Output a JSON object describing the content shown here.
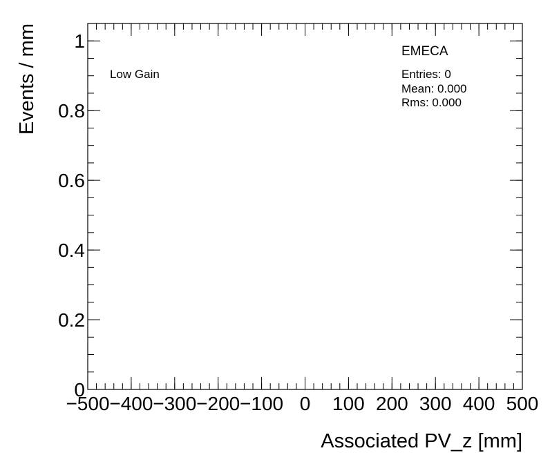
{
  "chart_data": {
    "type": "bar",
    "title": "",
    "xlabel": "Associated PV_z [mm]",
    "ylabel": "Events / mm",
    "xlim": [
      -500,
      500
    ],
    "ylim": [
      0,
      1.05
    ],
    "x_ticks": [
      -500,
      -400,
      -300,
      -200,
      -100,
      0,
      100,
      200,
      300,
      400,
      500
    ],
    "x_tick_labels": [
      "−500",
      "−400",
      "−300",
      "−200",
      "−100",
      "0",
      "100",
      "200",
      "300",
      "400",
      "500"
    ],
    "y_ticks": [
      0,
      0.2,
      0.4,
      0.6,
      0.8,
      1
    ],
    "y_tick_labels": [
      "0",
      "0.2",
      "0.4",
      "0.6",
      "0.8",
      "1"
    ],
    "x_minor_step": 20,
    "y_minor_step": 0.05,
    "grid": false,
    "legend": "none",
    "series": [],
    "annotations": {
      "gain": "Low Gain",
      "region": "EMECA",
      "stats": [
        "Entries: 0",
        "Mean: 0.000",
        "Rms: 0.000"
      ]
    }
  }
}
